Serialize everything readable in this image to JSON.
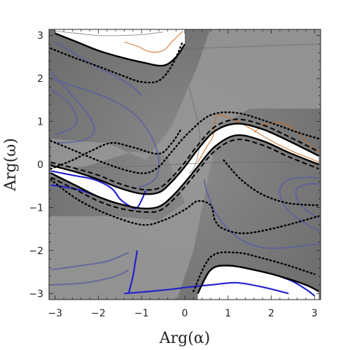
{
  "chart_data": {
    "type": "contour",
    "title": "",
    "xlabel": "Arg(α)",
    "ylabel": "Arg(ω)",
    "xlim": [
      -3.1416,
      3.1416
    ],
    "ylim": [
      -3.1416,
      3.1416
    ],
    "xticks": [
      -3,
      -2,
      -1,
      0,
      1,
      2,
      3
    ],
    "yticks": [
      -3,
      -2,
      -1,
      0,
      1,
      2,
      3
    ],
    "xtick_labels": [
      "−3",
      "−2",
      "−1",
      "0",
      "1",
      "2",
      "3"
    ],
    "ytick_labels": [
      "−3",
      "−2",
      "−1",
      "0",
      "1",
      "2",
      "3"
    ],
    "grid": false,
    "colors": {
      "background_dark": "#7a7a7a",
      "background_light": "#989898",
      "white_band": "#ffffff",
      "solid_contour": "#000000",
      "dashed_contour": "#000000",
      "dotted_contour": "#000000",
      "blue_contour": "#2222cc",
      "faint_blue_contour": "#5a5fa0",
      "orange_contour": "#cc6a1e",
      "gray_contour": "#6a6a6a"
    },
    "series": [
      {
        "style": "solid",
        "x": [
          -3.1,
          -2.5,
          -2.0,
          -1.5,
          -1.0,
          -0.6,
          -0.3,
          0.0,
          0.3,
          0.7,
          1.2,
          1.8,
          2.4,
          3.1
        ],
        "y": [
          -0.02,
          -0.18,
          -0.35,
          -0.55,
          -0.68,
          -0.65,
          -0.4,
          -0.05,
          0.35,
          0.78,
          0.95,
          0.82,
          0.55,
          0.2
        ]
      },
      {
        "style": "solid",
        "x": [
          -3.1,
          -2.5,
          -2.0,
          -1.5,
          -1.0,
          -0.6,
          -0.3,
          0.0,
          0.3,
          0.7,
          1.2,
          1.8,
          2.4,
          3.1
        ],
        "y": [
          -0.2,
          -0.5,
          -0.75,
          -0.92,
          -1.02,
          -0.98,
          -0.75,
          -0.42,
          -0.05,
          0.42,
          0.68,
          0.55,
          0.28,
          0.0
        ]
      },
      {
        "style": "dashed",
        "x": [
          -3.1,
          -2.5,
          -2.0,
          -1.5,
          -1.0,
          -0.6,
          -0.3,
          0.0,
          0.3,
          0.7,
          1.2,
          1.8,
          2.4,
          3.1
        ],
        "y": [
          0.05,
          -0.1,
          -0.25,
          -0.45,
          -0.58,
          -0.55,
          -0.3,
          0.05,
          0.45,
          0.88,
          1.05,
          0.92,
          0.65,
          0.3
        ]
      },
      {
        "style": "dashed",
        "x": [
          -3.1,
          -2.5,
          -2.0,
          -1.5,
          -1.0,
          -0.6,
          -0.3,
          0.0,
          0.3,
          0.7,
          1.2,
          1.8,
          2.4,
          3.1
        ],
        "y": [
          -0.3,
          -0.6,
          -0.85,
          -1.02,
          -1.1,
          -1.08,
          -0.85,
          -0.52,
          -0.15,
          0.32,
          0.58,
          0.45,
          0.18,
          -0.1
        ]
      },
      {
        "style": "dotted",
        "x": [
          -3.1,
          -2.5,
          -1.9,
          -1.3,
          -0.9,
          -0.6,
          -0.3,
          0.1,
          0.6,
          1.2,
          1.9,
          2.6,
          3.1
        ],
        "y": [
          0.55,
          0.3,
          0.05,
          -0.15,
          -0.2,
          -0.05,
          0.3,
          0.75,
          1.15,
          1.2,
          1.0,
          0.75,
          0.6
        ]
      },
      {
        "style": "dotted",
        "x": [
          -3.1,
          -2.5,
          -1.8,
          -1.0,
          -0.5,
          0.0,
          0.3,
          0.6,
          0.7,
          0.9,
          1.4,
          2.2,
          3.1
        ],
        "y": [
          -0.35,
          -0.8,
          -1.15,
          -1.4,
          -1.3,
          -1.05,
          -0.85,
          -0.95,
          -1.3,
          -1.5,
          -1.6,
          -1.45,
          -1.2
        ]
      },
      {
        "style": "dotted",
        "x": [
          -3.1,
          -2.6,
          -2.2,
          -1.7,
          -1.2,
          -0.6,
          -0.3,
          -0.1
        ],
        "y": [
          -0.1,
          0.1,
          0.3,
          0.5,
          0.4,
          0.25,
          0.5,
          0.8
        ]
      },
      {
        "style": "dotted",
        "x": [
          0.9,
          1.3,
          1.8,
          2.4,
          3.1
        ],
        "y": [
          0.1,
          -0.35,
          -0.7,
          -0.9,
          -0.95
        ]
      },
      {
        "style": "solid",
        "x": [
          -3.0,
          -2.5,
          -2.0,
          -1.5,
          -1.0,
          -0.5,
          -0.2,
          0.0
        ],
        "y": [
          3.05,
          2.85,
          2.65,
          2.5,
          2.38,
          2.3,
          2.5,
          2.8
        ]
      },
      {
        "style": "dotted",
        "x": [
          -3.1,
          -2.6,
          -2.0,
          -1.4,
          -1.0,
          -0.6,
          -0.3,
          -0.05
        ],
        "y": [
          2.7,
          2.5,
          2.28,
          2.05,
          1.92,
          1.95,
          2.3,
          2.85
        ]
      },
      {
        "style": "solid",
        "x": [
          0.3,
          0.6,
          1.0,
          1.6,
          2.2,
          2.8,
          3.1
        ],
        "y": [
          -3.0,
          -2.45,
          -2.35,
          -2.45,
          -2.6,
          -2.8,
          -2.95
        ]
      },
      {
        "style": "dotted",
        "x": [
          0.2,
          0.6,
          1.2,
          1.8,
          2.4,
          3.0
        ],
        "y": [
          -2.95,
          -2.15,
          -2.05,
          -2.18,
          -2.35,
          -2.55
        ]
      },
      {
        "style": "blue",
        "x": [
          -3.1,
          -2.6,
          -2.1,
          -1.7,
          -1.5,
          -1.3,
          -1.1,
          -0.9
        ],
        "y": [
          -0.15,
          -0.25,
          -0.35,
          -0.55,
          -0.8,
          -0.95,
          -1.0,
          -0.6
        ]
      },
      {
        "style": "blue",
        "x": [
          -3.1,
          -2.8,
          -2.4,
          -2.0,
          -1.6
        ],
        "y": [
          -0.48,
          -0.52,
          -0.6,
          -0.75,
          -0.9
        ]
      },
      {
        "style": "blue",
        "x": [
          -1.3,
          -1.2,
          -1.15,
          -1.1
        ],
        "y": [
          -3.0,
          -2.6,
          -2.3,
          -2.0
        ]
      },
      {
        "style": "blue",
        "x": [
          -1.4,
          -0.8,
          -0.3,
          0.1,
          0.6,
          1.2,
          1.8,
          2.4
        ],
        "y": [
          -3.0,
          -2.95,
          -2.9,
          -2.85,
          -2.8,
          -2.75,
          -2.85,
          -3.0
        ]
      },
      {
        "style": "blue",
        "x": [
          2.2,
          2.5,
          2.8,
          3.0
        ],
        "y": [
          -2.6,
          -2.72,
          -2.9,
          -3.05
        ]
      },
      {
        "style": "faint_blue",
        "x": [
          -3.1,
          -2.5,
          -1.8,
          -1.2,
          -0.8,
          -0.6,
          -0.7,
          -1.1
        ],
        "y": [
          2.0,
          1.8,
          1.55,
          1.2,
          0.7,
          0.1,
          -0.35,
          -0.55
        ]
      },
      {
        "style": "faint_blue",
        "x": [
          -3.1,
          -2.6,
          -2.2,
          -2.1,
          -2.4,
          -3.0
        ],
        "y": [
          2.15,
          1.6,
          1.1,
          0.75,
          0.55,
          0.5
        ]
      },
      {
        "style": "faint_blue",
        "x": [
          -3.1,
          -2.7,
          -2.5,
          -2.6,
          -3.0
        ],
        "y": [
          1.75,
          1.45,
          1.1,
          0.85,
          0.7
        ]
      },
      {
        "style": "faint_blue",
        "x": [
          3.1,
          2.6,
          2.3,
          2.2,
          2.4,
          2.9,
          3.1
        ],
        "y": [
          -1.55,
          -1.25,
          -0.95,
          -0.6,
          -0.35,
          -0.3,
          -0.32
        ]
      },
      {
        "style": "faint_blue",
        "x": [
          3.1,
          2.8,
          2.6,
          2.6,
          2.9,
          3.1
        ],
        "y": [
          -1.25,
          -1.05,
          -0.8,
          -0.55,
          -0.45,
          -0.45
        ]
      },
      {
        "style": "faint_blue",
        "x": [
          3.1,
          2.0,
          1.4,
          1.0,
          0.7,
          0.5,
          0.45
        ],
        "y": [
          -1.85,
          -1.95,
          -1.8,
          -1.5,
          -1.1,
          -0.6,
          -0.35
        ]
      },
      {
        "style": "faint_blue",
        "x": [
          -3.1,
          -2.4,
          -1.8,
          -1.3
        ],
        "y": [
          -2.45,
          -2.35,
          -2.25,
          -2.05
        ]
      },
      {
        "style": "faint_blue",
        "x": [
          -3.1,
          -2.3,
          -1.6,
          -1.3
        ],
        "y": [
          -2.8,
          -2.75,
          -2.6,
          -2.45
        ]
      },
      {
        "style": "faint_blue",
        "x": [
          -3.0,
          -2.5,
          -2.1,
          -1.6,
          -1.2,
          -1.0
        ],
        "y": [
          2.85,
          2.55,
          2.3,
          2.05,
          1.8,
          1.6
        ]
      },
      {
        "style": "orange",
        "x": [
          -1.4,
          -1.1,
          -0.8,
          -0.5,
          -0.3,
          -0.05
        ],
        "y": [
          2.85,
          2.75,
          2.62,
          2.65,
          2.85,
          3.1
        ]
      },
      {
        "style": "orange",
        "x": [
          0.3,
          0.5,
          0.65,
          0.7,
          0.75,
          1.0,
          1.5,
          2.0,
          2.5,
          3.0,
          3.1
        ],
        "y": [
          0.05,
          0.4,
          0.65,
          0.95,
          1.15,
          1.1,
          0.85,
          0.55,
          0.3,
          0.1,
          0.05
        ]
      },
      {
        "style": "orange",
        "x": [
          1.6,
          1.9,
          2.3,
          2.6,
          2.9,
          3.1
        ],
        "y": [
          0.75,
          0.95,
          0.95,
          0.75,
          0.45,
          0.3
        ]
      },
      {
        "style": "gray",
        "x": [
          0.1,
          0.2,
          0.3,
          0.35,
          0.3,
          0.2,
          0.1
        ],
        "y": [
          -0.2,
          -0.1,
          0.2,
          0.6,
          1.0,
          1.4,
          1.8
        ]
      },
      {
        "style": "gray",
        "x": [
          -3.0,
          -2.5,
          -2.0,
          -1.5,
          -1.0,
          -0.5
        ],
        "y": [
          3.1,
          3.05,
          3.0,
          3.0,
          3.02,
          3.08
        ]
      },
      {
        "style": "gray",
        "x": [
          0.0,
          0.8,
          1.6,
          2.4,
          3.1
        ],
        "y": [
          2.7,
          2.72,
          2.75,
          2.78,
          2.8
        ]
      },
      {
        "style": "gray",
        "x": [
          -3.1,
          -2.2,
          -1.4,
          -0.6,
          0.1,
          0.9,
          1.8,
          2.6,
          3.1
        ],
        "y": [
          -0.05,
          -0.07,
          -0.05,
          -0.02,
          0.02,
          0.05,
          0.06,
          0.05,
          0.03
        ]
      }
    ]
  }
}
